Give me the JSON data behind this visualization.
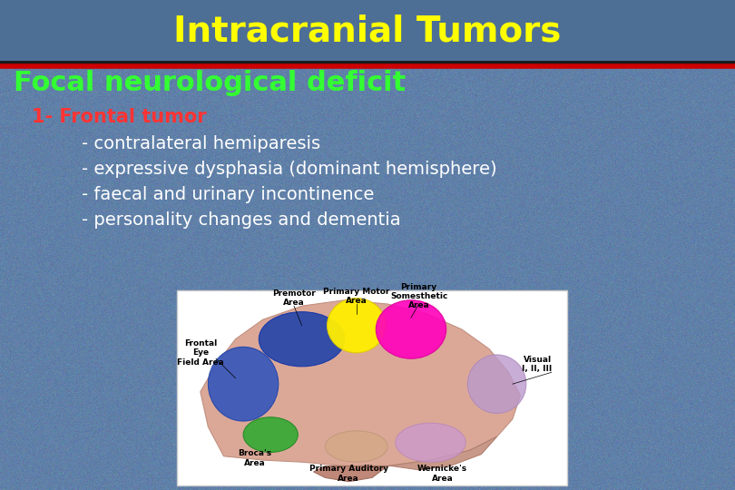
{
  "title": "Intracranial Tumors",
  "title_color": "#FFFF00",
  "title_fontsize": 28,
  "title_bg_color": "#4d6f96",
  "header_line_color_red": "#cc0000",
  "header_line_color_dark": "#1a1a1a",
  "subtitle": "Focal neurological deficit",
  "subtitle_color": "#33ff33",
  "subtitle_fontsize": 22,
  "item_header": "1- Frontal tumor",
  "item_header_color": "#ff3333",
  "item_header_fontsize": 15,
  "bullet_color": "#ffffff",
  "bullet_fontsize": 14,
  "bullets": [
    "- contralateral hemiparesis",
    "- expressive dysphasia (dominant hemisphere)",
    "- faecal and urinary incontinence",
    "- personality changes and dementia"
  ],
  "bg_color": "#6080a8",
  "figsize": [
    8.1,
    5.4
  ],
  "dpi": 100
}
